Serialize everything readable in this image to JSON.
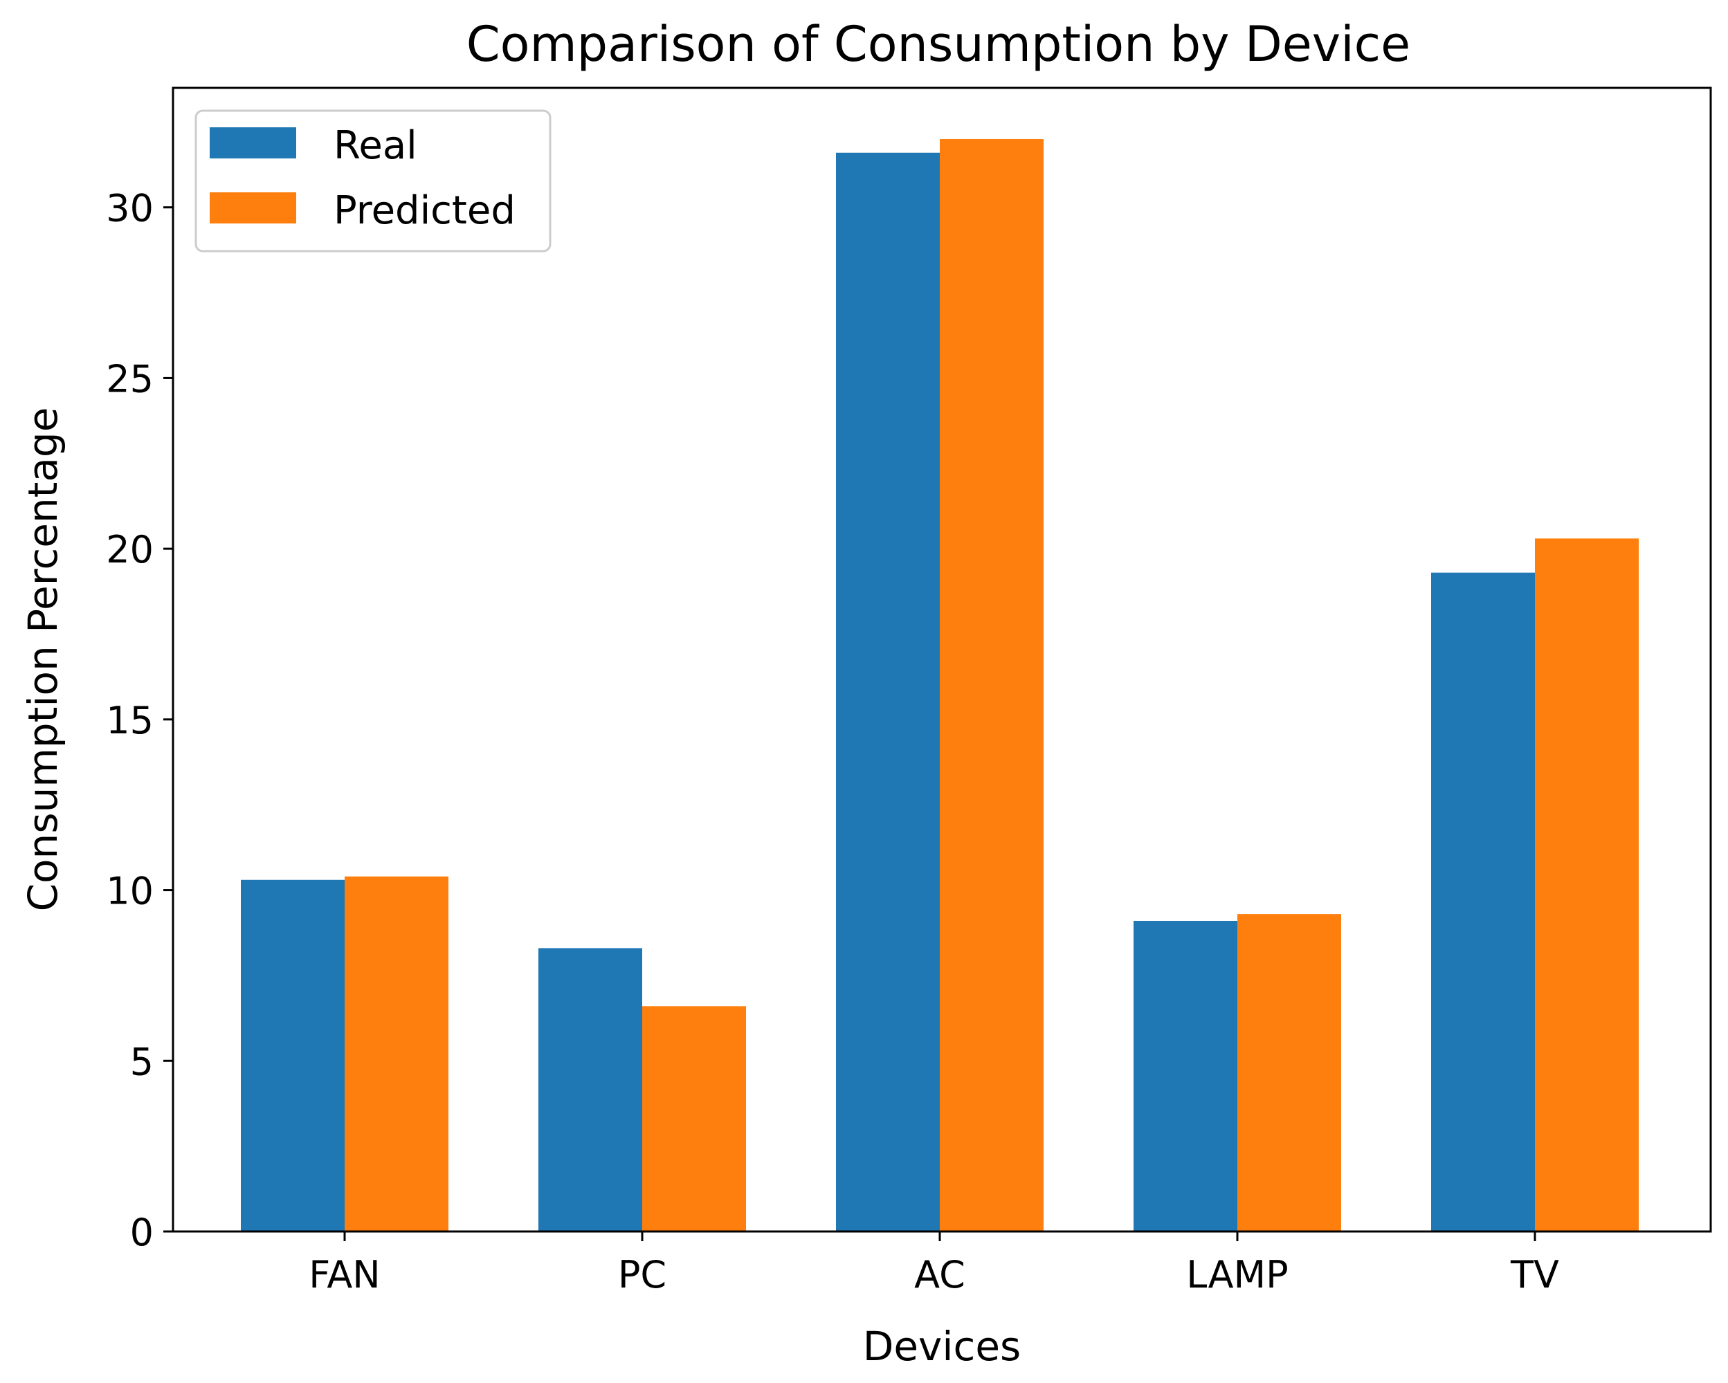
{
  "chart_data": {
    "type": "bar",
    "title": "Comparison of Consumption by Device",
    "xlabel": "Devices",
    "ylabel": "Consumption Percentage",
    "categories": [
      "FAN",
      "PC",
      "AC",
      "LAMP",
      "TV"
    ],
    "series": [
      {
        "name": "Real",
        "color": "#1f77b4",
        "values": [
          10.3,
          8.3,
          31.6,
          9.1,
          19.3
        ]
      },
      {
        "name": "Predicted",
        "color": "#ff7f0e",
        "values": [
          10.4,
          6.6,
          32.0,
          9.3,
          20.3
        ]
      }
    ],
    "ylim": [
      0,
      33.5
    ],
    "yticks": [
      0,
      5,
      10,
      15,
      20,
      25,
      30
    ],
    "ytick_labels": [
      "0",
      "5",
      "10",
      "15",
      "20",
      "25",
      "30"
    ],
    "grid": false,
    "legend_position": "top-left"
  }
}
